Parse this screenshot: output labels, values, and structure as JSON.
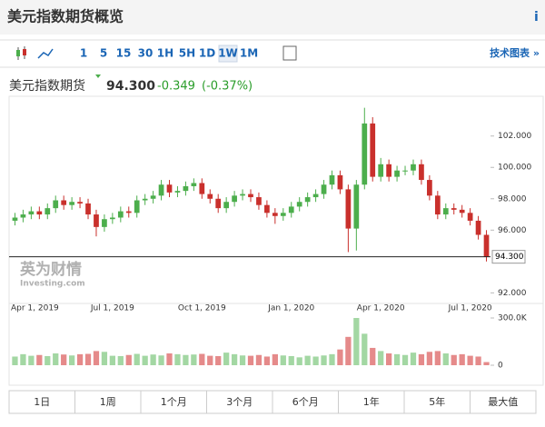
{
  "header": {
    "title": "美元指数期货概览",
    "info": "i"
  },
  "toolbar": {
    "intervals": [
      "1",
      "5",
      "15",
      "30",
      "1H",
      "5H",
      "1D",
      "1W",
      "1M"
    ],
    "selected": "1W",
    "link": "技术图表 »"
  },
  "quote": {
    "name": "美元指数期货",
    "price": "94.300",
    "change": "-0.349",
    "change_pct": "(-0.37%)"
  },
  "watermark": {
    "cn": "英为财情",
    "en": "Investing.com"
  },
  "ranges": [
    "1日",
    "1周",
    "1个月",
    "3个月",
    "6个月",
    "1年",
    "5年",
    "最大值"
  ],
  "chart_data": {
    "type": "candlestick",
    "categories": [
      "Apr 1, 2019",
      null,
      null,
      null,
      null,
      null,
      null,
      null,
      null,
      null,
      null,
      null,
      "Jul 1, 2019",
      null,
      null,
      null,
      null,
      null,
      null,
      null,
      null,
      null,
      null,
      "Oct 1, 2019",
      null,
      null,
      null,
      null,
      null,
      null,
      null,
      null,
      null,
      null,
      "Jan 1, 2020",
      null,
      null,
      null,
      null,
      null,
      null,
      null,
      null,
      null,
      null,
      "Apr 1, 2020",
      null,
      null,
      null,
      null,
      null,
      null,
      null,
      null,
      null,
      null,
      "Jul 1, 2020",
      null,
      null
    ],
    "open": [
      96.6,
      96.8,
      97.0,
      97.2,
      97.0,
      97.4,
      97.9,
      97.6,
      97.8,
      97.7,
      97.0,
      96.2,
      96.7,
      96.8,
      97.2,
      97.1,
      97.9,
      98.0,
      98.2,
      98.9,
      98.4,
      98.5,
      98.8,
      99.0,
      98.3,
      98.0,
      97.4,
      97.8,
      98.2,
      98.3,
      98.1,
      97.6,
      97.1,
      96.9,
      97.1,
      97.5,
      97.8,
      98.1,
      98.3,
      98.9,
      99.5,
      98.6,
      96.1,
      98.9,
      102.8,
      99.4,
      100.2,
      99.4,
      99.8,
      99.8,
      100.2,
      99.2,
      98.2,
      97.0,
      97.4,
      97.3,
      97.1,
      96.6,
      95.7
    ],
    "high": [
      97.1,
      97.3,
      97.5,
      97.5,
      97.7,
      98.2,
      98.2,
      98.1,
      98.1,
      98.0,
      97.3,
      97.0,
      97.1,
      97.5,
      97.5,
      98.2,
      98.3,
      98.5,
      99.2,
      99.2,
      98.8,
      99.1,
      99.3,
      99.3,
      98.6,
      98.3,
      98.1,
      98.5,
      98.6,
      98.6,
      98.4,
      97.9,
      97.4,
      97.4,
      97.8,
      98.1,
      98.4,
      98.6,
      99.2,
      99.8,
      99.8,
      98.9,
      99.2,
      103.8,
      103.2,
      100.6,
      100.5,
      100.1,
      100.1,
      100.5,
      100.5,
      99.5,
      98.5,
      97.7,
      97.7,
      97.6,
      97.4,
      96.9,
      96.0
    ],
    "low": [
      96.3,
      96.5,
      96.7,
      96.7,
      96.7,
      97.1,
      97.3,
      97.3,
      97.4,
      96.7,
      95.6,
      95.9,
      96.4,
      96.5,
      96.8,
      96.8,
      97.6,
      97.7,
      97.9,
      98.1,
      98.1,
      98.2,
      98.5,
      98.0,
      97.7,
      97.1,
      97.1,
      97.5,
      97.9,
      97.8,
      97.3,
      96.8,
      96.4,
      96.6,
      96.8,
      97.2,
      97.5,
      97.8,
      98.0,
      98.6,
      98.3,
      94.6,
      94.7,
      98.6,
      99.1,
      99.1,
      99.1,
      99.1,
      99.5,
      99.5,
      98.9,
      97.9,
      96.7,
      96.7,
      97.0,
      96.8,
      96.3,
      95.4,
      94.0
    ],
    "close": [
      96.8,
      97.0,
      97.2,
      97.0,
      97.4,
      97.9,
      97.6,
      97.8,
      97.7,
      97.0,
      96.2,
      96.7,
      96.8,
      97.2,
      97.1,
      97.9,
      98.0,
      98.2,
      98.9,
      98.4,
      98.5,
      98.8,
      99.0,
      98.3,
      98.0,
      97.4,
      97.8,
      98.2,
      98.3,
      98.1,
      97.6,
      97.1,
      96.9,
      97.1,
      97.5,
      97.8,
      98.1,
      98.3,
      98.9,
      99.5,
      98.6,
      96.1,
      98.9,
      102.8,
      99.4,
      100.2,
      99.4,
      99.8,
      99.8,
      100.2,
      99.2,
      98.2,
      97.0,
      97.4,
      97.3,
      97.1,
      96.6,
      95.7,
      94.3
    ],
    "volume": [
      55000,
      70000,
      60000,
      65000,
      58000,
      75000,
      68000,
      62000,
      70000,
      72000,
      90000,
      85000,
      60000,
      58000,
      65000,
      72000,
      60000,
      68000,
      62000,
      75000,
      70000,
      65000,
      68000,
      72000,
      60000,
      58000,
      80000,
      70000,
      62000,
      60000,
      65000,
      55000,
      70000,
      62000,
      58000,
      50000,
      60000,
      55000,
      62000,
      70000,
      100000,
      180000,
      300000,
      200000,
      110000,
      90000,
      75000,
      70000,
      65000,
      80000,
      70000,
      85000,
      90000,
      75000,
      65000,
      70000,
      60000,
      55000,
      20000
    ],
    "up_color": "#4cae4c",
    "down_color": "#c9302c",
    "up_volume_color": "#a3d7a3",
    "down_volume_color": "#e58a8a",
    "ylim": [
      91.5,
      104.3
    ],
    "yticks": [
      {
        "value": 92,
        "label": "92.000"
      },
      {
        "value": 96,
        "label": "96.000"
      },
      {
        "value": 98,
        "label": "98.000"
      },
      {
        "value": 100,
        "label": "100.000"
      },
      {
        "value": 102,
        "label": "102.000"
      }
    ],
    "last_price": {
      "value": 94.3,
      "label": "94.300"
    },
    "y2lim": [
      0,
      300000
    ],
    "y2ticks": [
      0,
      {
        "value": 300000,
        "label": "300.0K"
      }
    ]
  }
}
